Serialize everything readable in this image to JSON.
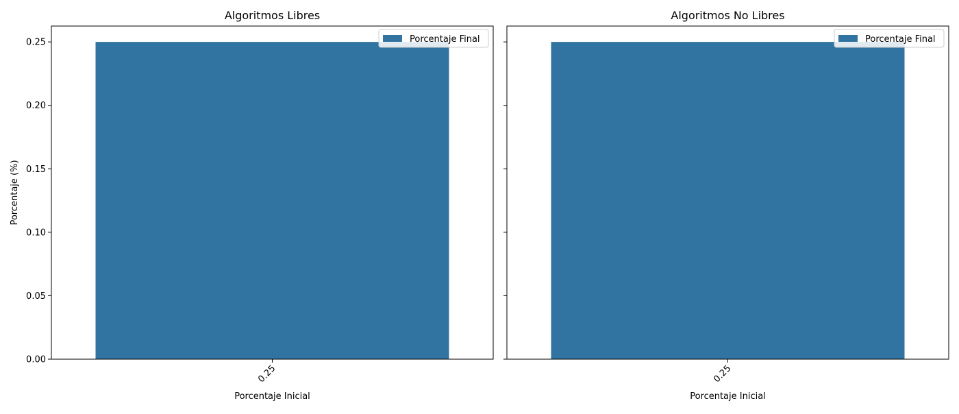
{
  "chart_data": [
    {
      "type": "bar",
      "title": "Algoritmos Libres",
      "xlabel": "Porcentaje Inicial",
      "ylabel": "Porcentaje (%)",
      "categories": [
        "0.25"
      ],
      "series": [
        {
          "name": "Porcentaje Final",
          "values": [
            0.25
          ],
          "color": "#3274a1"
        }
      ],
      "ylim": [
        0,
        0.2625
      ],
      "yticks": [
        "0.00",
        "0.05",
        "0.10",
        "0.15",
        "0.20",
        "0.25"
      ],
      "legend": "top-right",
      "grid": false
    },
    {
      "type": "bar",
      "title": "Algoritmos No Libres",
      "xlabel": "Porcentaje Inicial",
      "ylabel": "",
      "categories": [
        "0.25"
      ],
      "series": [
        {
          "name": "Porcentaje Final",
          "values": [
            0.25
          ],
          "color": "#3274a1"
        }
      ],
      "ylim": [
        0,
        0.2625
      ],
      "yticks": [
        "0.00",
        "0.05",
        "0.10",
        "0.15",
        "0.20",
        "0.25"
      ],
      "legend": "top-right",
      "grid": false
    }
  ]
}
